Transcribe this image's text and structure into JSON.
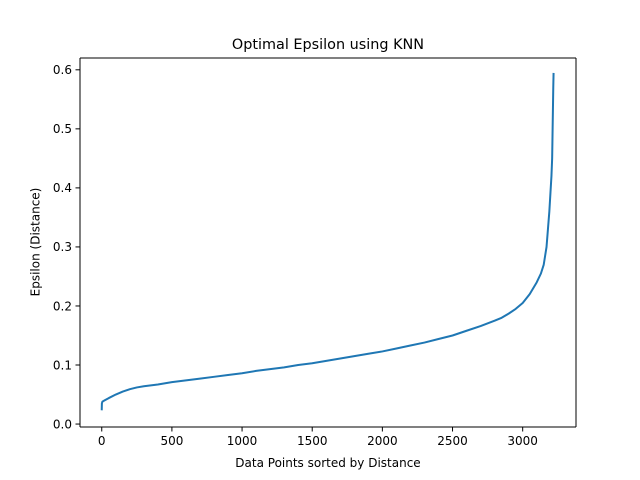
{
  "chart_data": {
    "type": "line",
    "title": "Optimal Epsilon using KNN",
    "xlabel": "Data Points sorted by Distance",
    "ylabel": "Epsilon (Distance)",
    "xlim": [
      -155,
      3380
    ],
    "ylim": [
      -0.005,
      0.62
    ],
    "grid": false,
    "legend": "none",
    "x_ticks": [
      0,
      500,
      1000,
      1500,
      2000,
      2500,
      3000
    ],
    "x_tick_labels": [
      "0",
      "500",
      "1000",
      "1500",
      "2000",
      "2500",
      "3000"
    ],
    "y_ticks": [
      0.0,
      0.1,
      0.2,
      0.3,
      0.4,
      0.5,
      0.6
    ],
    "y_tick_labels": [
      "0.0",
      "0.1",
      "0.2",
      "0.3",
      "0.4",
      "0.5",
      "0.6"
    ],
    "series": [
      {
        "color": "#1f77b4",
        "x": [
          0,
          1,
          5,
          20,
          50,
          100,
          150,
          200,
          250,
          300,
          400,
          500,
          600,
          700,
          800,
          900,
          1000,
          1100,
          1200,
          1300,
          1400,
          1500,
          1600,
          1700,
          1800,
          1900,
          2000,
          2100,
          2200,
          2300,
          2400,
          2500,
          2600,
          2700,
          2800,
          2850,
          2900,
          2950,
          3000,
          3050,
          3100,
          3130,
          3150,
          3160,
          3170,
          3180,
          3190,
          3200,
          3205,
          3210,
          3212,
          3214,
          3216,
          3218,
          3220
        ],
        "y": [
          0.025,
          0.035,
          0.038,
          0.04,
          0.044,
          0.05,
          0.055,
          0.059,
          0.062,
          0.064,
          0.067,
          0.071,
          0.074,
          0.077,
          0.08,
          0.083,
          0.086,
          0.09,
          0.093,
          0.096,
          0.1,
          0.103,
          0.107,
          0.111,
          0.115,
          0.119,
          0.123,
          0.128,
          0.133,
          0.138,
          0.144,
          0.15,
          0.158,
          0.166,
          0.175,
          0.18,
          0.187,
          0.195,
          0.205,
          0.22,
          0.24,
          0.255,
          0.27,
          0.285,
          0.3,
          0.33,
          0.36,
          0.4,
          0.42,
          0.45,
          0.48,
          0.51,
          0.54,
          0.57,
          0.593
        ]
      }
    ]
  }
}
